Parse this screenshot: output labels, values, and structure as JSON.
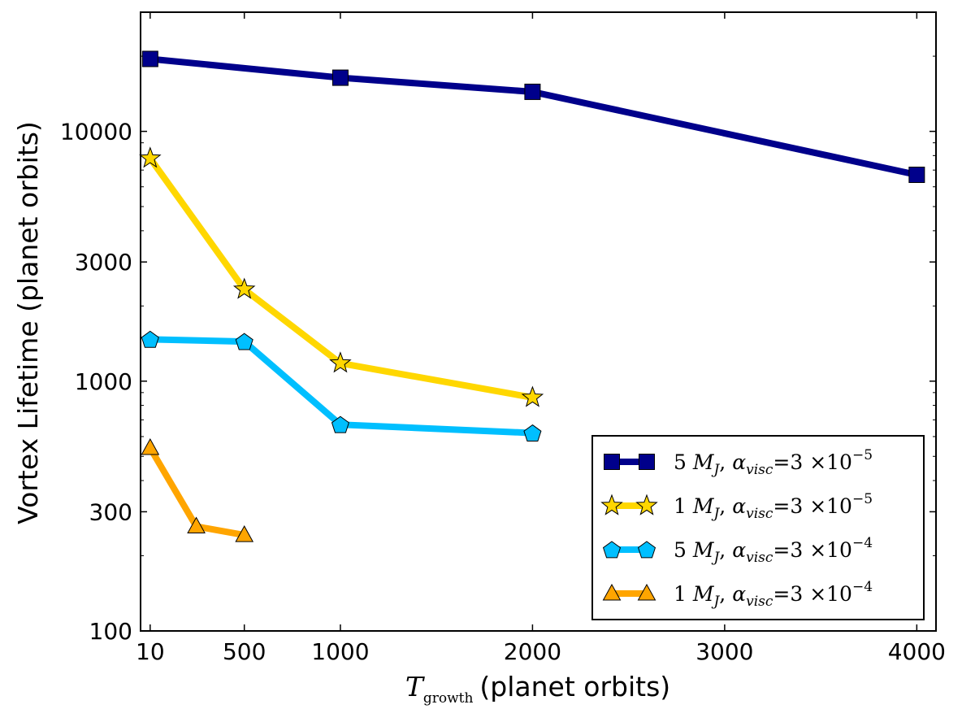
{
  "chart_data": {
    "type": "line",
    "xlabel": {
      "symbol": "T",
      "subscript": "growth",
      "text": "(planet orbits)"
    },
    "ylabel": "Vortex Lifetime (planet orbits)",
    "xscale": "linear",
    "yscale": "log",
    "xlim": [
      -40,
      4100
    ],
    "ylim": [
      100,
      30000
    ],
    "xticks": [
      10,
      500,
      1000,
      2000,
      3000,
      4000
    ],
    "xtick_labels": [
      "10",
      "500",
      "1000",
      "2000",
      "3000",
      "4000"
    ],
    "yticks": [
      100,
      300,
      1000,
      3000,
      10000
    ],
    "ytick_labels": [
      "100",
      "300",
      "1000",
      "3000",
      "10000"
    ],
    "grid": false,
    "legend_position": "lower-right",
    "series": [
      {
        "name": "5 M_J, α_visc=3×10^-5",
        "legend": {
          "mass": "5",
          "alpha_exp": "−5"
        },
        "color": "#00008b",
        "marker": "square",
        "x": [
          10,
          1000,
          2000,
          4000
        ],
        "y": [
          19500,
          16400,
          14400,
          6700
        ]
      },
      {
        "name": "1 M_J, α_visc=3×10^-5",
        "legend": {
          "mass": "1",
          "alpha_exp": "−5"
        },
        "color": "#ffd700",
        "marker": "star",
        "x": [
          10,
          500,
          1000,
          2000
        ],
        "y": [
          7800,
          2330,
          1180,
          860
        ]
      },
      {
        "name": "5 M_J, α_visc=3×10^-4",
        "legend": {
          "mass": "5",
          "alpha_exp": "−4"
        },
        "color": "#00bfff",
        "marker": "pentagon",
        "x": [
          10,
          500,
          1000,
          2000
        ],
        "y": [
          1470,
          1440,
          670,
          620
        ]
      },
      {
        "name": "1 M_J, α_visc=3×10^-4",
        "legend": {
          "mass": "1",
          "alpha_exp": "−4"
        },
        "color": "#ffa500",
        "marker": "triangle",
        "x": [
          10,
          250,
          500
        ],
        "y": [
          540,
          262,
          242
        ]
      }
    ]
  }
}
